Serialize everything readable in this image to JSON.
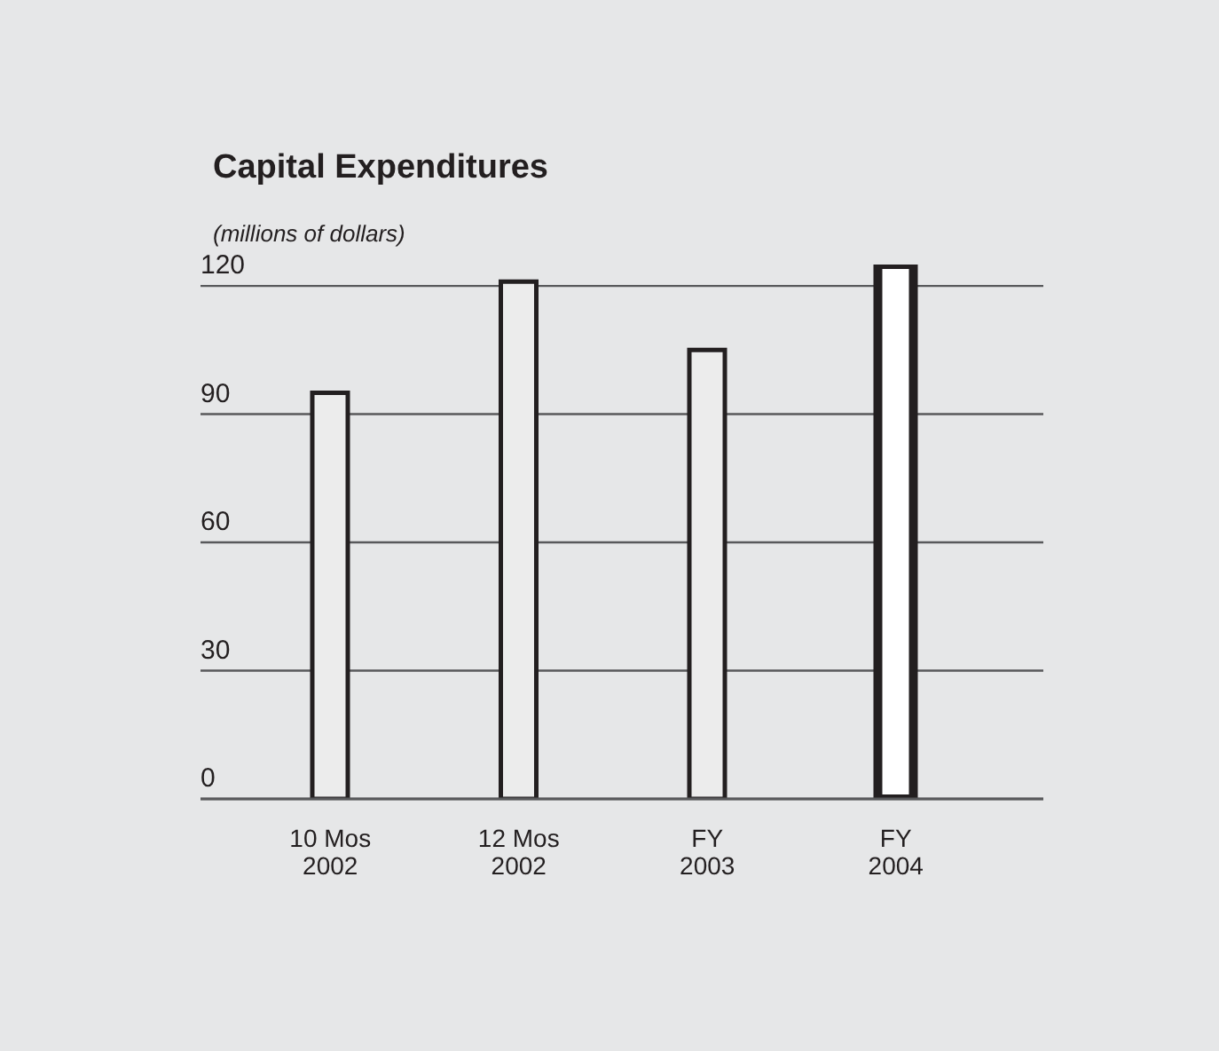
{
  "chart_data": {
    "type": "bar",
    "title": "Capital Expenditures",
    "subtitle": "(millions of dollars)",
    "categories": [
      "10 Mos\n2002",
      "12 Mos\n2002",
      "FY\n2003",
      "FY\n2004"
    ],
    "values": [
      95,
      121,
      105,
      125
    ],
    "colors": [
      "#ececec",
      "#ececec",
      "#ececec",
      "#ffffff"
    ],
    "ylim": [
      0,
      125
    ],
    "yticks": [
      0,
      30,
      60,
      90,
      120
    ],
    "grid": "y"
  }
}
